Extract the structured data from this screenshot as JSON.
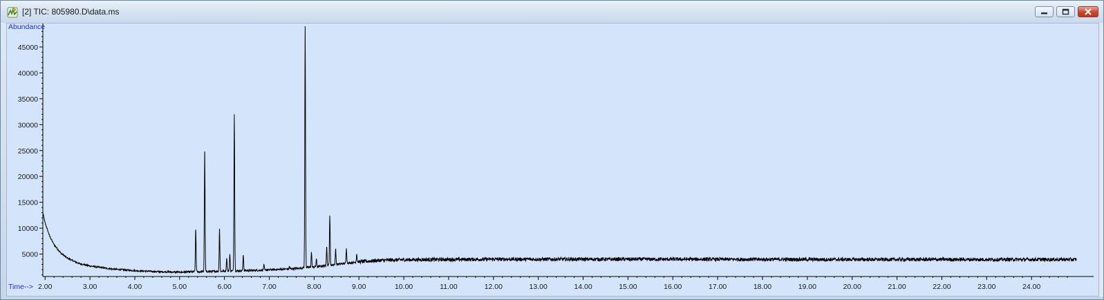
{
  "window": {
    "title": "[2] TIC: 805980.D\\data.ms",
    "app_icon": "chemstation-data-icon",
    "controls": [
      "minimize-icon",
      "maximize-icon",
      "close-icon"
    ]
  },
  "colors": {
    "plot_background": "#d4e4fa",
    "trace": "#000000",
    "axis_label": "#1f2fd6"
  },
  "chart_data": {
    "type": "line",
    "title": "",
    "xlabel": "Time-->",
    "ylabel": "Abundance",
    "xlim": [
      1.95,
      25.0
    ],
    "ylim": [
      800,
      49000
    ],
    "grid": false,
    "x_ticks": [
      2,
      3,
      4,
      5,
      6,
      7,
      8,
      9,
      10,
      11,
      12,
      13,
      14,
      15,
      16,
      17,
      18,
      19,
      20,
      21,
      22,
      23,
      24
    ],
    "x_tick_labels": [
      "2.00",
      "3.00",
      "4.00",
      "5.00",
      "6.00",
      "7.00",
      "8.00",
      "9.00",
      "10.00",
      "11.00",
      "12.00",
      "13.00",
      "14.00",
      "15.00",
      "16.00",
      "17.00",
      "18.00",
      "19.00",
      "20.00",
      "21.00",
      "22.00",
      "23.00",
      "24.00"
    ],
    "y_ticks": [
      5000,
      10000,
      15000,
      20000,
      25000,
      30000,
      35000,
      40000,
      45000
    ],
    "y_tick_labels": [
      "5000",
      "10000",
      "15000",
      "20000",
      "25000",
      "30000",
      "35000",
      "40000",
      "45000"
    ],
    "series": [
      {
        "baseline": {
          "x": [
            1.95,
            2.0,
            2.1,
            2.2,
            2.35,
            2.5,
            2.75,
            3.0,
            3.5,
            4.0,
            4.5,
            5.0,
            5.5,
            6.0,
            6.5,
            7.0,
            7.5,
            7.7,
            8.0,
            8.5,
            9.0,
            9.5,
            10.0,
            12.0,
            16.0,
            20.0,
            25.0
          ],
          "y": [
            13000,
            11000,
            8500,
            6800,
            5200,
            4200,
            3200,
            2700,
            2100,
            1800,
            1600,
            1500,
            1600,
            1700,
            1800,
            1950,
            2150,
            2300,
            2500,
            3000,
            3500,
            3800,
            3900,
            4000,
            4000,
            3950,
            3950
          ]
        },
        "noise_amplitude": 700,
        "peaks": [
          {
            "rt": 5.36,
            "abundance": 9700
          },
          {
            "rt": 5.56,
            "abundance": 24800
          },
          {
            "rt": 5.89,
            "abundance": 9800
          },
          {
            "rt": 6.05,
            "abundance": 4200
          },
          {
            "rt": 6.12,
            "abundance": 5000
          },
          {
            "rt": 6.22,
            "abundance": 32000
          },
          {
            "rt": 6.42,
            "abundance": 4800
          },
          {
            "rt": 6.88,
            "abundance": 2900
          },
          {
            "rt": 7.45,
            "abundance": 2600
          },
          {
            "rt": 7.8,
            "abundance": 49000
          },
          {
            "rt": 7.94,
            "abundance": 5300
          },
          {
            "rt": 8.05,
            "abundance": 4000
          },
          {
            "rt": 8.28,
            "abundance": 6400
          },
          {
            "rt": 8.35,
            "abundance": 12300
          },
          {
            "rt": 8.48,
            "abundance": 6000
          },
          {
            "rt": 8.72,
            "abundance": 6100
          },
          {
            "rt": 8.95,
            "abundance": 5000
          }
        ]
      }
    ]
  }
}
